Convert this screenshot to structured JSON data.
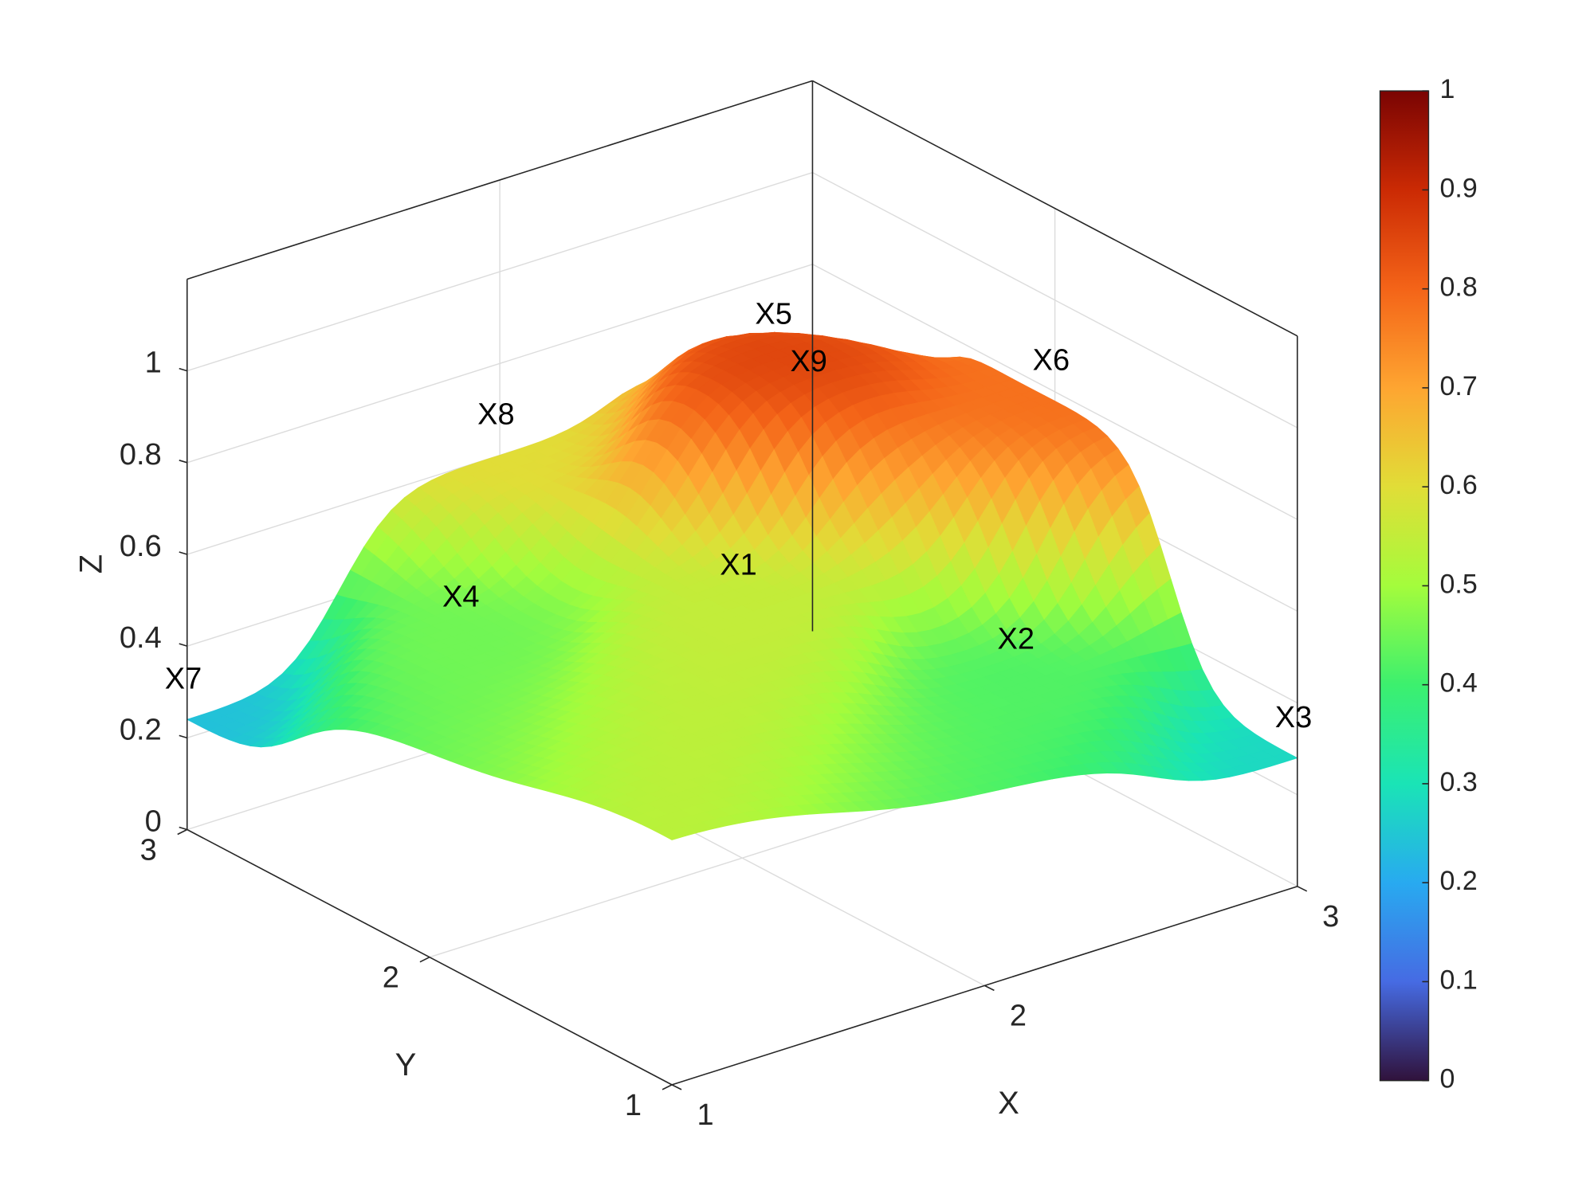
{
  "chart_data": {
    "type": "surface",
    "xlabel": "X",
    "ylabel": "Y",
    "zlabel": "Z",
    "xlim": [
      1,
      3
    ],
    "ylim": [
      1,
      3
    ],
    "zlim": [
      0,
      1.2
    ],
    "xticks": [
      "1",
      "2",
      "3"
    ],
    "yticks": [
      "1",
      "2",
      "3"
    ],
    "zticks": [
      "0",
      "0.2",
      "0.4",
      "0.6",
      "0.8",
      "1"
    ],
    "grid": true,
    "colorbar": {
      "colormap": "turbo",
      "limits": [
        0,
        1
      ],
      "ticks": [
        "0",
        "0.1",
        "0.2",
        "0.3",
        "0.4",
        "0.5",
        "0.6",
        "0.7",
        "0.8",
        "0.9",
        "1"
      ]
    },
    "points": [
      {
        "label": "X1",
        "x": 2,
        "y": 2,
        "z": 0.55
      },
      {
        "label": "X2",
        "x": 2.5,
        "y": 1.5,
        "z": 0.42
      },
      {
        "label": "X3",
        "x": 3,
        "y": 1,
        "z": 0.28
      },
      {
        "label": "X4",
        "x": 1.5,
        "y": 2.5,
        "z": 0.45
      },
      {
        "label": "X5",
        "x": 2.5,
        "y": 2.5,
        "z": 0.85
      },
      {
        "label": "X6",
        "x": 3,
        "y": 2,
        "z": 0.78
      },
      {
        "label": "X7",
        "x": 1,
        "y": 3,
        "z": 0.24
      },
      {
        "label": "X8",
        "x": 2,
        "y": 3,
        "z": 0.6
      },
      {
        "label": "X9",
        "x": 3,
        "y": 3,
        "z": 0.5
      }
    ]
  }
}
